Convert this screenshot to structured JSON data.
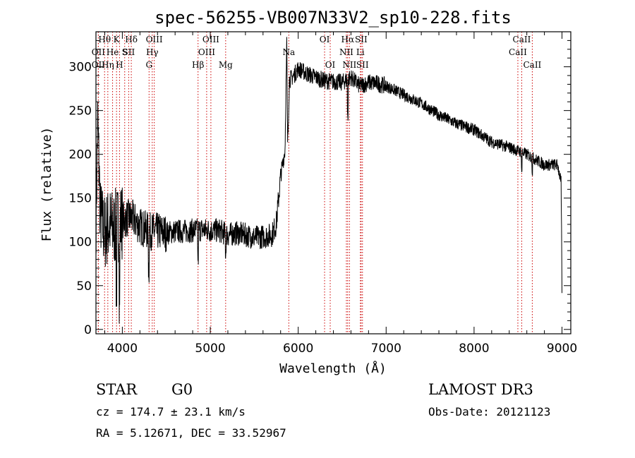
{
  "chart_data": {
    "type": "line",
    "title": "spec-56255-VB007N33V2_sp10-228.fits",
    "xlabel": "Wavelength (Å)",
    "ylabel": "Flux (relative)",
    "xlim": [
      3700,
      9100
    ],
    "ylim": [
      -5,
      340
    ],
    "x_ticks": [
      4000,
      5000,
      6000,
      7000,
      8000,
      9000
    ],
    "y_ticks": [
      0,
      50,
      100,
      150,
      200,
      250,
      300
    ],
    "series_knots": [
      [
        3700,
        120
      ],
      [
        3720,
        240
      ],
      [
        3750,
        130
      ],
      [
        3800,
        110
      ],
      [
        3850,
        120
      ],
      [
        3900,
        115
      ],
      [
        4000,
        125
      ],
      [
        4100,
        128
      ],
      [
        4200,
        118
      ],
      [
        4300,
        112
      ],
      [
        4400,
        112
      ],
      [
        4500,
        110
      ],
      [
        4600,
        112
      ],
      [
        4700,
        112
      ],
      [
        4800,
        113
      ],
      [
        4900,
        114
      ],
      [
        5000,
        113
      ],
      [
        5100,
        113
      ],
      [
        5200,
        108
      ],
      [
        5300,
        110
      ],
      [
        5400,
        108
      ],
      [
        5500,
        105
      ],
      [
        5600,
        106
      ],
      [
        5700,
        108
      ],
      [
        5750,
        120
      ],
      [
        5800,
        175
      ],
      [
        5850,
        205
      ],
      [
        5870,
        330
      ],
      [
        5880,
        210
      ],
      [
        5900,
        285
      ],
      [
        5950,
        290
      ],
      [
        6000,
        298
      ],
      [
        6100,
        292
      ],
      [
        6200,
        288
      ],
      [
        6300,
        284
      ],
      [
        6400,
        283
      ],
      [
        6500,
        282
      ],
      [
        6600,
        288
      ],
      [
        6700,
        278
      ],
      [
        6800,
        282
      ],
      [
        6900,
        281
      ],
      [
        7000,
        278
      ],
      [
        7200,
        268
      ],
      [
        7400,
        258
      ],
      [
        7600,
        245
      ],
      [
        7800,
        235
      ],
      [
        8000,
        228
      ],
      [
        8200,
        214
      ],
      [
        8400,
        208
      ],
      [
        8600,
        200
      ],
      [
        8800,
        188
      ],
      [
        8950,
        188
      ],
      [
        8990,
        168
      ],
      [
        9000,
        40
      ]
    ],
    "lines": [
      {
        "wl": 3727,
        "label": "OII",
        "row": 1
      },
      {
        "wl": 3727,
        "label": "OII",
        "row": 2
      },
      {
        "wl": 3798,
        "label": "Hθ",
        "row": 0
      },
      {
        "wl": 3835,
        "label": "Hη",
        "row": 2
      },
      {
        "wl": 3889,
        "label": "He",
        "row": 1
      },
      {
        "wl": 3934,
        "label": "K",
        "row": 0
      },
      {
        "wl": 3968,
        "label": "H",
        "row": 2
      },
      {
        "wl": 4027,
        "label": "S",
        "row": 1
      },
      {
        "wl": 4102,
        "label": "Hδ",
        "row": 0
      },
      {
        "wl": 4072,
        "label": "SII",
        "row": 1
      },
      {
        "wl": 4304,
        "label": "G",
        "row": 2
      },
      {
        "wl": 4340,
        "label": "Hγ",
        "row": 1
      },
      {
        "wl": 4363,
        "label": "OIII",
        "row": 0
      },
      {
        "wl": 4861,
        "label": "Hβ",
        "row": 2
      },
      {
        "wl": 4959,
        "label": "OIII",
        "row": 1
      },
      {
        "wl": 5007,
        "label": "OIII",
        "row": 0
      },
      {
        "wl": 5175,
        "label": "Mg",
        "row": 2
      },
      {
        "wl": 5893,
        "label": "Na",
        "row": 1
      },
      {
        "wl": 6300,
        "label": "OI",
        "row": 0
      },
      {
        "wl": 6364,
        "label": "OI",
        "row": 2
      },
      {
        "wl": 6548,
        "label": "NII",
        "row": 1
      },
      {
        "wl": 6563,
        "label": "Hα",
        "row": 0
      },
      {
        "wl": 6583,
        "label": "NII",
        "row": 2
      },
      {
        "wl": 6707,
        "label": "Li",
        "row": 1
      },
      {
        "wl": 6716,
        "label": "SII",
        "row": 0
      },
      {
        "wl": 6731,
        "label": "SII",
        "row": 2
      },
      {
        "wl": 8498,
        "label": "CaII",
        "row": 1
      },
      {
        "wl": 8542,
        "label": "CaII",
        "row": 0
      },
      {
        "wl": 8662,
        "label": "CaII",
        "row": 2
      }
    ]
  },
  "info": {
    "object_class": "STAR",
    "subclass": "G0",
    "survey": "LAMOST DR3",
    "cz": "cz = 174.7 ± 23.1 km/s",
    "obs_date": "Obs-Date: 20121123",
    "coords": "RA =   5.12671, DEC =  33.52967"
  },
  "colors": {
    "spectrum": "#000000",
    "line_marker": "#cc0000",
    "axes": "#000000"
  }
}
